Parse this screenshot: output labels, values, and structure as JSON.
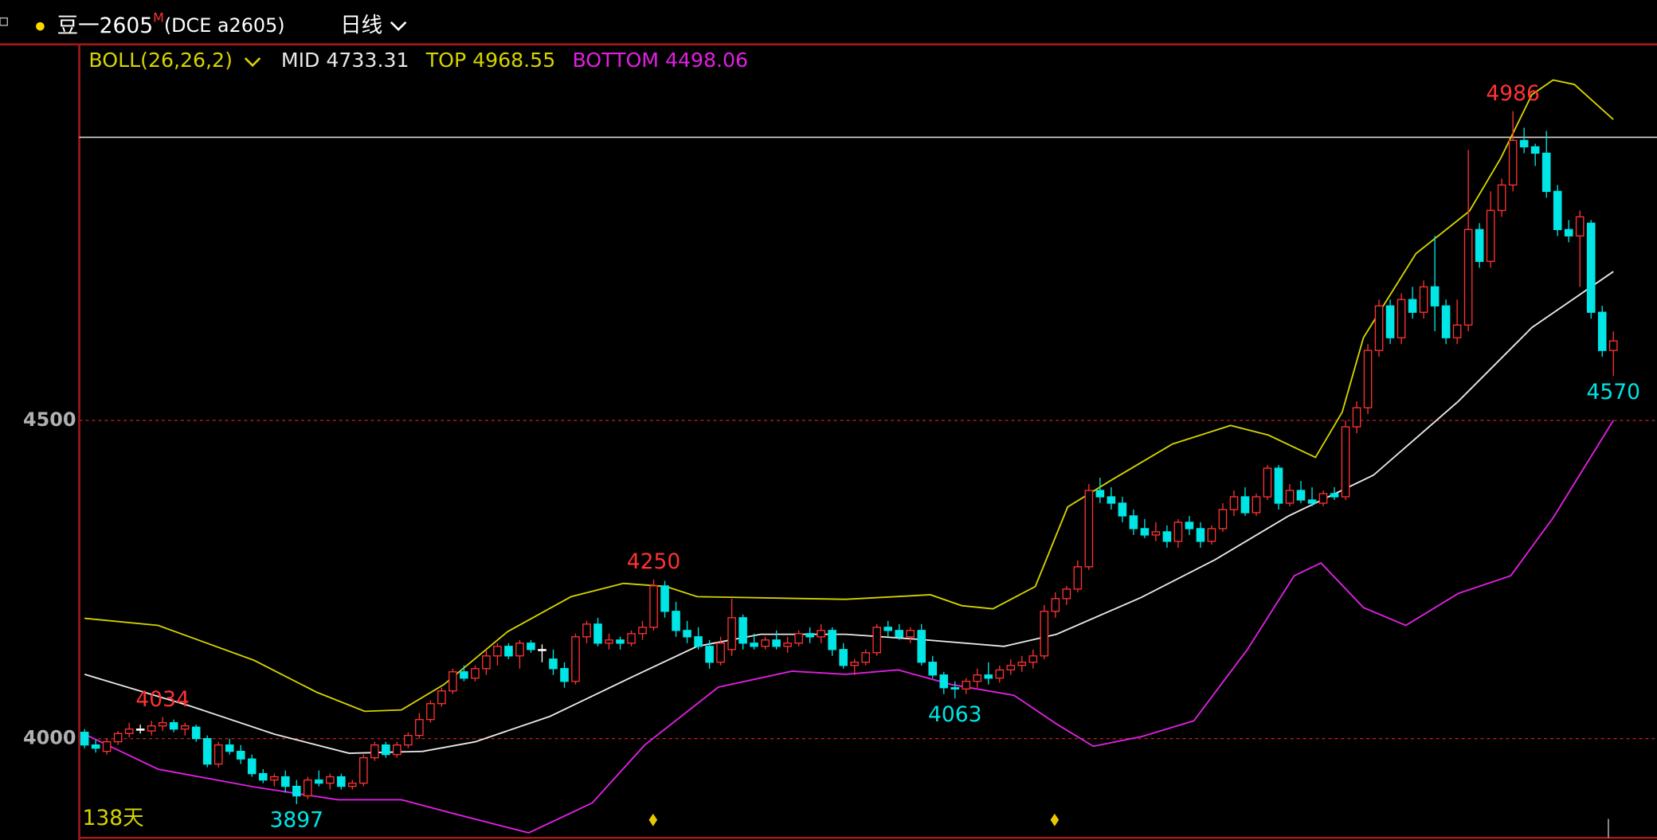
{
  "chart_data": {
    "type": "candlestick",
    "symbol": "豆一2605",
    "symbol_mark": "M",
    "exchange": "(DCE a2605)",
    "period": "日线",
    "days_label": "138天",
    "indicator": "BOLL(26,26,2)",
    "up_color": "#ff3232",
    "down_color": "#00e5e5",
    "ylim": [
      3844,
      5091
    ],
    "yticks": [
      4000,
      4500
    ],
    "grid": true,
    "reference_line": 4945,
    "candles": [
      {
        "o": 4010,
        "h": 4015,
        "l": 3985,
        "c": 3990
      },
      {
        "o": 3990,
        "h": 3998,
        "l": 3978,
        "c": 3985
      },
      {
        "o": 3980,
        "h": 4000,
        "l": 3975,
        "c": 3995
      },
      {
        "o": 3995,
        "h": 4012,
        "l": 3990,
        "c": 4008
      },
      {
        "o": 4008,
        "h": 4025,
        "l": 4002,
        "c": 4015
      },
      {
        "o": 4015,
        "h": 4022,
        "l": 4008,
        "c": 4015
      },
      {
        "o": 4012,
        "h": 4028,
        "l": 4005,
        "c": 4020
      },
      {
        "o": 4020,
        "h": 4034,
        "l": 4012,
        "c": 4025
      },
      {
        "o": 4025,
        "h": 4030,
        "l": 4010,
        "c": 4015
      },
      {
        "o": 4015,
        "h": 4025,
        "l": 4005,
        "c": 4020
      },
      {
        "o": 4018,
        "h": 4022,
        "l": 3995,
        "c": 4000
      },
      {
        "o": 4000,
        "h": 4005,
        "l": 3955,
        "c": 3960
      },
      {
        "o": 3960,
        "h": 3995,
        "l": 3955,
        "c": 3990
      },
      {
        "o": 3990,
        "h": 4000,
        "l": 3975,
        "c": 3980
      },
      {
        "o": 3980,
        "h": 3990,
        "l": 3960,
        "c": 3968
      },
      {
        "o": 3968,
        "h": 3975,
        "l": 3940,
        "c": 3945
      },
      {
        "o": 3945,
        "h": 3952,
        "l": 3930,
        "c": 3935
      },
      {
        "o": 3935,
        "h": 3945,
        "l": 3925,
        "c": 3940
      },
      {
        "o": 3940,
        "h": 3950,
        "l": 3915,
        "c": 3925
      },
      {
        "o": 3925,
        "h": 3935,
        "l": 3897,
        "c": 3910
      },
      {
        "o": 3910,
        "h": 3940,
        "l": 3905,
        "c": 3935
      },
      {
        "o": 3935,
        "h": 3950,
        "l": 3925,
        "c": 3930
      },
      {
        "o": 3930,
        "h": 3945,
        "l": 3920,
        "c": 3940
      },
      {
        "o": 3940,
        "h": 3945,
        "l": 3920,
        "c": 3925
      },
      {
        "o": 3925,
        "h": 3935,
        "l": 3920,
        "c": 3930
      },
      {
        "o": 3930,
        "h": 3975,
        "l": 3925,
        "c": 3970
      },
      {
        "o": 3970,
        "h": 3995,
        "l": 3965,
        "c": 3990
      },
      {
        "o": 3990,
        "h": 3995,
        "l": 3970,
        "c": 3975
      },
      {
        "o": 3975,
        "h": 3995,
        "l": 3970,
        "c": 3990
      },
      {
        "o": 3990,
        "h": 4010,
        "l": 3985,
        "c": 4005
      },
      {
        "o": 4005,
        "h": 4040,
        "l": 4000,
        "c": 4030
      },
      {
        "o": 4030,
        "h": 4060,
        "l": 4025,
        "c": 4055
      },
      {
        "o": 4055,
        "h": 4080,
        "l": 4050,
        "c": 4075
      },
      {
        "o": 4075,
        "h": 4110,
        "l": 4070,
        "c": 4105
      },
      {
        "o": 4105,
        "h": 4115,
        "l": 4090,
        "c": 4095
      },
      {
        "o": 4095,
        "h": 4115,
        "l": 4090,
        "c": 4110
      },
      {
        "o": 4110,
        "h": 4140,
        "l": 4100,
        "c": 4130
      },
      {
        "o": 4130,
        "h": 4150,
        "l": 4115,
        "c": 4145
      },
      {
        "o": 4145,
        "h": 4150,
        "l": 4125,
        "c": 4130
      },
      {
        "o": 4130,
        "h": 4155,
        "l": 4110,
        "c": 4150
      },
      {
        "o": 4150,
        "h": 4155,
        "l": 4135,
        "c": 4140
      },
      {
        "o": 4140,
        "h": 4148,
        "l": 4120,
        "c": 4140
      },
      {
        "o": 4125,
        "h": 4140,
        "l": 4100,
        "c": 4110
      },
      {
        "o": 4110,
        "h": 4120,
        "l": 4080,
        "c": 4090
      },
      {
        "o": 4090,
        "h": 4165,
        "l": 4085,
        "c": 4160
      },
      {
        "o": 4160,
        "h": 4185,
        "l": 4150,
        "c": 4180
      },
      {
        "o": 4180,
        "h": 4190,
        "l": 4145,
        "c": 4150
      },
      {
        "o": 4150,
        "h": 4165,
        "l": 4140,
        "c": 4155
      },
      {
        "o": 4155,
        "h": 4160,
        "l": 4140,
        "c": 4150
      },
      {
        "o": 4150,
        "h": 4170,
        "l": 4145,
        "c": 4165
      },
      {
        "o": 4165,
        "h": 4185,
        "l": 4155,
        "c": 4175
      },
      {
        "o": 4175,
        "h": 4250,
        "l": 4170,
        "c": 4240
      },
      {
        "o": 4240,
        "h": 4248,
        "l": 4190,
        "c": 4200
      },
      {
        "o": 4200,
        "h": 4215,
        "l": 4160,
        "c": 4170
      },
      {
        "o": 4170,
        "h": 4185,
        "l": 4150,
        "c": 4160
      },
      {
        "o": 4160,
        "h": 4175,
        "l": 4140,
        "c": 4145
      },
      {
        "o": 4145,
        "h": 4155,
        "l": 4110,
        "c": 4120
      },
      {
        "o": 4120,
        "h": 4160,
        "l": 4115,
        "c": 4150
      },
      {
        "o": 4140,
        "h": 4220,
        "l": 4130,
        "c": 4190
      },
      {
        "o": 4190,
        "h": 4195,
        "l": 4140,
        "c": 4150
      },
      {
        "o": 4150,
        "h": 4165,
        "l": 4140,
        "c": 4145
      },
      {
        "o": 4145,
        "h": 4160,
        "l": 4140,
        "c": 4155
      },
      {
        "o": 4155,
        "h": 4170,
        "l": 4140,
        "c": 4145
      },
      {
        "o": 4145,
        "h": 4160,
        "l": 4135,
        "c": 4150
      },
      {
        "o": 4150,
        "h": 4170,
        "l": 4145,
        "c": 4165
      },
      {
        "o": 4165,
        "h": 4175,
        "l": 4150,
        "c": 4160
      },
      {
        "o": 4160,
        "h": 4180,
        "l": 4150,
        "c": 4170
      },
      {
        "o": 4170,
        "h": 4175,
        "l": 4130,
        "c": 4140
      },
      {
        "o": 4140,
        "h": 4150,
        "l": 4110,
        "c": 4115
      },
      {
        "o": 4115,
        "h": 4125,
        "l": 4100,
        "c": 4120
      },
      {
        "o": 4120,
        "h": 4140,
        "l": 4115,
        "c": 4135
      },
      {
        "o": 4135,
        "h": 4180,
        "l": 4130,
        "c": 4175
      },
      {
        "o": 4175,
        "h": 4185,
        "l": 4160,
        "c": 4170
      },
      {
        "o": 4170,
        "h": 4180,
        "l": 4155,
        "c": 4160
      },
      {
        "o": 4160,
        "h": 4175,
        "l": 4150,
        "c": 4170
      },
      {
        "o": 4170,
        "h": 4180,
        "l": 4115,
        "c": 4120
      },
      {
        "o": 4120,
        "h": 4130,
        "l": 4095,
        "c": 4100
      },
      {
        "o": 4100,
        "h": 4105,
        "l": 4070,
        "c": 4080
      },
      {
        "o": 4080,
        "h": 4090,
        "l": 4063,
        "c": 4078
      },
      {
        "o": 4078,
        "h": 4095,
        "l": 4070,
        "c": 4090
      },
      {
        "o": 4090,
        "h": 4110,
        "l": 4080,
        "c": 4100
      },
      {
        "o": 4100,
        "h": 4120,
        "l": 4085,
        "c": 4095
      },
      {
        "o": 4095,
        "h": 4115,
        "l": 4088,
        "c": 4108
      },
      {
        "o": 4108,
        "h": 4125,
        "l": 4100,
        "c": 4115
      },
      {
        "o": 4115,
        "h": 4130,
        "l": 4105,
        "c": 4120
      },
      {
        "o": 4120,
        "h": 4140,
        "l": 4110,
        "c": 4130
      },
      {
        "o": 4130,
        "h": 4210,
        "l": 4125,
        "c": 4200
      },
      {
        "o": 4200,
        "h": 4230,
        "l": 4190,
        "c": 4220
      },
      {
        "o": 4220,
        "h": 4240,
        "l": 4210,
        "c": 4235
      },
      {
        "o": 4235,
        "h": 4280,
        "l": 4230,
        "c": 4270
      },
      {
        "o": 4270,
        "h": 4400,
        "l": 4265,
        "c": 4390
      },
      {
        "o": 4390,
        "h": 4410,
        "l": 4370,
        "c": 4380
      },
      {
        "o": 4380,
        "h": 4395,
        "l": 4360,
        "c": 4370
      },
      {
        "o": 4370,
        "h": 4380,
        "l": 4340,
        "c": 4350
      },
      {
        "o": 4350,
        "h": 4360,
        "l": 4320,
        "c": 4330
      },
      {
        "o": 4330,
        "h": 4345,
        "l": 4315,
        "c": 4320
      },
      {
        "o": 4320,
        "h": 4340,
        "l": 4310,
        "c": 4325
      },
      {
        "o": 4325,
        "h": 4335,
        "l": 4300,
        "c": 4310
      },
      {
        "o": 4310,
        "h": 4345,
        "l": 4300,
        "c": 4340
      },
      {
        "o": 4340,
        "h": 4350,
        "l": 4320,
        "c": 4330
      },
      {
        "o": 4330,
        "h": 4340,
        "l": 4300,
        "c": 4310
      },
      {
        "o": 4310,
        "h": 4335,
        "l": 4305,
        "c": 4330
      },
      {
        "o": 4330,
        "h": 4370,
        "l": 4325,
        "c": 4360
      },
      {
        "o": 4360,
        "h": 4390,
        "l": 4350,
        "c": 4380
      },
      {
        "o": 4380,
        "h": 4395,
        "l": 4350,
        "c": 4355
      },
      {
        "o": 4355,
        "h": 4385,
        "l": 4350,
        "c": 4380
      },
      {
        "o": 4380,
        "h": 4430,
        "l": 4375,
        "c": 4425
      },
      {
        "o": 4425,
        "h": 4430,
        "l": 4360,
        "c": 4370
      },
      {
        "o": 4370,
        "h": 4400,
        "l": 4365,
        "c": 4390
      },
      {
        "o": 4390,
        "h": 4405,
        "l": 4370,
        "c": 4375
      },
      {
        "o": 4375,
        "h": 4395,
        "l": 4365,
        "c": 4370
      },
      {
        "o": 4370,
        "h": 4390,
        "l": 4365,
        "c": 4385
      },
      {
        "o": 4385,
        "h": 4395,
        "l": 4375,
        "c": 4380
      },
      {
        "o": 4380,
        "h": 4500,
        "l": 4375,
        "c": 4490
      },
      {
        "o": 4490,
        "h": 4530,
        "l": 4480,
        "c": 4520
      },
      {
        "o": 4520,
        "h": 4620,
        "l": 4510,
        "c": 4610
      },
      {
        "o": 4610,
        "h": 4690,
        "l": 4600,
        "c": 4680
      },
      {
        "o": 4680,
        "h": 4690,
        "l": 4620,
        "c": 4630
      },
      {
        "o": 4630,
        "h": 4700,
        "l": 4620,
        "c": 4690
      },
      {
        "o": 4690,
        "h": 4710,
        "l": 4660,
        "c": 4670
      },
      {
        "o": 4670,
        "h": 4720,
        "l": 4660,
        "c": 4710
      },
      {
        "o": 4710,
        "h": 4790,
        "l": 4640,
        "c": 4680
      },
      {
        "o": 4680,
        "h": 4690,
        "l": 4620,
        "c": 4630
      },
      {
        "o": 4630,
        "h": 4690,
        "l": 4620,
        "c": 4650
      },
      {
        "o": 4650,
        "h": 4925,
        "l": 4640,
        "c": 4800
      },
      {
        "o": 4800,
        "h": 4810,
        "l": 4740,
        "c": 4750
      },
      {
        "o": 4750,
        "h": 4860,
        "l": 4740,
        "c": 4830
      },
      {
        "o": 4830,
        "h": 4880,
        "l": 4820,
        "c": 4870
      },
      {
        "o": 4870,
        "h": 4986,
        "l": 4860,
        "c": 4940
      },
      {
        "o": 4940,
        "h": 4960,
        "l": 4920,
        "c": 4930
      },
      {
        "o": 4930,
        "h": 4935,
        "l": 4900,
        "c": 4920
      },
      {
        "o": 4920,
        "h": 4955,
        "l": 4850,
        "c": 4860
      },
      {
        "o": 4860,
        "h": 4870,
        "l": 4790,
        "c": 4800
      },
      {
        "o": 4800,
        "h": 4815,
        "l": 4780,
        "c": 4790
      },
      {
        "o": 4790,
        "h": 4830,
        "l": 4710,
        "c": 4820
      },
      {
        "o": 4810,
        "h": 4815,
        "l": 4660,
        "c": 4670
      },
      {
        "o": 4670,
        "h": 4680,
        "l": 4600,
        "c": 4610
      },
      {
        "o": 4610,
        "h": 4640,
        "l": 4570,
        "c": 4625
      }
    ],
    "extreme_labels": [
      4034,
      3897,
      4250,
      4063,
      4986,
      4570
    ],
    "series": [
      {
        "name": "MID",
        "color": "#e8e8e8",
        "last": 4733.31,
        "x": [
          0,
          9.5,
          17,
          23.7,
          30.3,
          35,
          41.7,
          49.2,
          54.9,
          60.6,
          68.2,
          74.8,
          82.4,
          87.1,
          94.7,
          101.3,
          107.9,
          115.5,
          123.1,
          129.7,
          137
        ],
        "values": [
          4101,
          4051,
          4007,
          3977,
          3980,
          3995,
          4035,
          4098,
          4145,
          4164,
          4164,
          4156,
          4145,
          4164,
          4222,
          4281,
          4350,
          4414,
          4530,
          4646,
          4734
        ]
      },
      {
        "name": "TOP",
        "color": "#d4d400",
        "last": 4968.55,
        "x": [
          0,
          6.6,
          15.2,
          20.8,
          25.1,
          28.4,
          32.2,
          37.9,
          43.6,
          48.3,
          52.1,
          54.9,
          68.2,
          75.8,
          78.6,
          81.4,
          85.2,
          88.1,
          91.9,
          97.5,
          102.7,
          106.1,
          110.3,
          112.7,
          114.6,
          119.3,
          124.1,
          126.9,
          129.7,
          131.6,
          133.5,
          137
        ],
        "values": [
          4189,
          4178,
          4123,
          4073,
          4043,
          4045,
          4085,
          4168,
          4223,
          4244,
          4239,
          4223,
          4219,
          4226,
          4209,
          4204,
          4239,
          4364,
          4405,
          4463,
          4492,
          4477,
          4442,
          4513,
          4630,
          4762,
          4829,
          4912,
          5012,
          5035,
          5028,
          4973
        ]
      },
      {
        "name": "BOTTOM",
        "color": "#e020e0",
        "last": 4498.06,
        "x": [
          0,
          6.6,
          15.2,
          22.7,
          28.4,
          33.1,
          39.8,
          45.5,
          50.2,
          56.8,
          63.4,
          68.2,
          72.9,
          77.7,
          83.3,
          87.1,
          90.4,
          94.7,
          99.4,
          104.2,
          108.4,
          110.8,
          114.6,
          118.4,
          123.1,
          127.8,
          131.6,
          137
        ],
        "values": [
          4007,
          3952,
          3924,
          3904,
          3904,
          3882,
          3852,
          3899,
          3990,
          4081,
          4106,
          4101,
          4108,
          4085,
          4068,
          4023,
          3988,
          4003,
          4028,
          4140,
          4256,
          4276,
          4206,
          4178,
          4228,
          4256,
          4347,
          4500
        ]
      }
    ]
  }
}
